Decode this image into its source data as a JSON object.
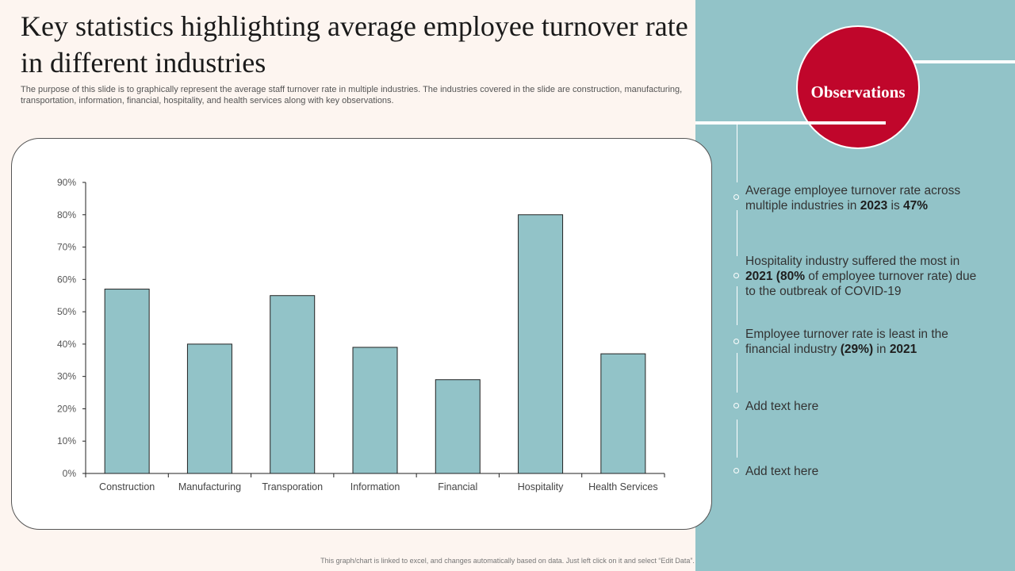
{
  "slide": {
    "title": "Key statistics highlighting average employee turnover rate in different industries",
    "subtitle": "The purpose of this slide is to graphically represent the average staff turnover rate in multiple industries. The industries covered in the slide are construction, manufacturing, transportation, information, financial, hospitality, and health services along with key observations.",
    "footnote": "This graph/chart is linked to excel, and changes automatically based on data. Just left click on it and select “Edit Data”."
  },
  "observations": {
    "title": "Observations",
    "items": [
      {
        "parts": [
          {
            "text": "Average employee turnover  rate across multiple industries in ",
            "bold": false
          },
          {
            "text": "2023",
            "bold": true
          },
          {
            "text": " is ",
            "bold": false
          },
          {
            "text": "47%",
            "bold": true
          }
        ]
      },
      {
        "parts": [
          {
            "text": "Hospitality industry suffered the most in ",
            "bold": false
          },
          {
            "text": "2021 (80%",
            "bold": true
          },
          {
            "text": " of employee turnover  rate) due to the outbreak of COVID-19",
            "bold": false
          }
        ]
      },
      {
        "parts": [
          {
            "text": "Employee turnover  rate is least in the financial industry ",
            "bold": false
          },
          {
            "text": "(29%)",
            "bold": true
          },
          {
            "text": " in ",
            "bold": false
          },
          {
            "text": "2021",
            "bold": true
          }
        ]
      },
      {
        "parts": [
          {
            "text": "Add text here",
            "bold": false
          }
        ]
      },
      {
        "parts": [
          {
            "text": "Add text here",
            "bold": false
          }
        ]
      }
    ]
  },
  "colors": {
    "bar": "#92c3c8",
    "accent": "#c0062b",
    "panel": "#92c3c8",
    "background": "#fdf5f0"
  },
  "chart_data": {
    "type": "bar",
    "categories": [
      "Construction",
      "Manufacturing",
      "Transporation",
      "Information",
      "Financial",
      "Hospitality",
      "Health Services"
    ],
    "values": [
      57,
      40,
      55,
      39,
      29,
      80,
      37
    ],
    "ylim": [
      0,
      90
    ],
    "yticks": [
      "0%",
      "10%",
      "20%",
      "30%",
      "40%",
      "50%",
      "60%",
      "70%",
      "80%",
      "90%"
    ],
    "title": "",
    "xlabel": "",
    "ylabel": "",
    "grid": false,
    "legend": "none"
  }
}
